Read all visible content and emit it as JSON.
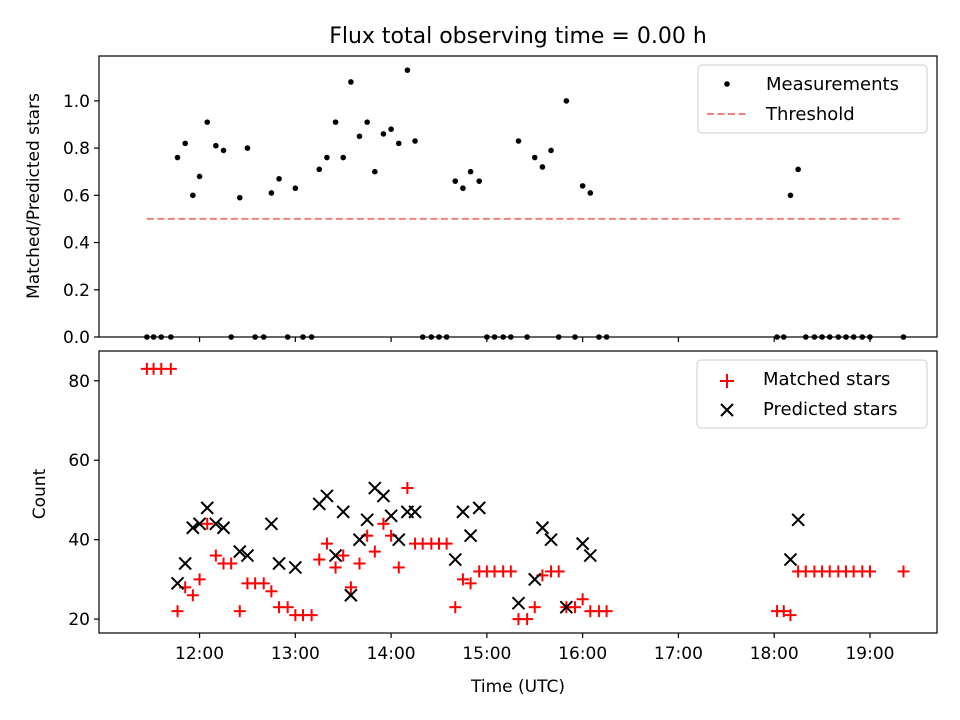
{
  "chart_data": [
    {
      "type": "scatter",
      "title": "Flux total observing time = 0.00 h",
      "xlabel": "",
      "ylabel": "Matched/Predicted stars",
      "xlim": [
        10.95,
        19.7
      ],
      "ylim": [
        0.0,
        1.19
      ],
      "yticks": [
        0.0,
        0.2,
        0.4,
        0.6,
        0.8,
        1.0
      ],
      "ytick_labels": [
        "0.0",
        "0.2",
        "0.4",
        "0.6",
        "0.8",
        "1.0"
      ],
      "legend_position": "top-right",
      "series": [
        {
          "name": "Measurements",
          "marker": "dot",
          "color": "#000000",
          "points": [
            [
              11.45,
              0.0
            ],
            [
              11.52,
              0.0
            ],
            [
              11.6,
              0.0
            ],
            [
              11.7,
              0.0
            ],
            [
              11.77,
              0.76
            ],
            [
              11.85,
              0.82
            ],
            [
              11.93,
              0.6
            ],
            [
              12.0,
              0.68
            ],
            [
              12.08,
              0.91
            ],
            [
              12.17,
              0.81
            ],
            [
              12.25,
              0.79
            ],
            [
              12.33,
              0.0
            ],
            [
              12.42,
              0.59
            ],
            [
              12.5,
              0.8
            ],
            [
              12.58,
              0.0
            ],
            [
              12.67,
              0.0
            ],
            [
              12.75,
              0.61
            ],
            [
              12.83,
              0.67
            ],
            [
              12.92,
              0.0
            ],
            [
              13.0,
              0.63
            ],
            [
              13.08,
              0.0
            ],
            [
              13.17,
              0.0
            ],
            [
              13.25,
              0.71
            ],
            [
              13.33,
              0.76
            ],
            [
              13.42,
              0.91
            ],
            [
              13.5,
              0.76
            ],
            [
              13.58,
              1.08
            ],
            [
              13.67,
              0.85
            ],
            [
              13.75,
              0.91
            ],
            [
              13.83,
              0.7
            ],
            [
              13.92,
              0.86
            ],
            [
              14.0,
              0.88
            ],
            [
              14.08,
              0.82
            ],
            [
              14.17,
              1.13
            ],
            [
              14.25,
              0.83
            ],
            [
              14.33,
              0.0
            ],
            [
              14.42,
              0.0
            ],
            [
              14.5,
              0.0
            ],
            [
              14.58,
              0.0
            ],
            [
              14.67,
              0.66
            ],
            [
              14.75,
              0.63
            ],
            [
              14.83,
              0.7
            ],
            [
              14.92,
              0.66
            ],
            [
              15.0,
              0.0
            ],
            [
              15.08,
              0.0
            ],
            [
              15.17,
              0.0
            ],
            [
              15.25,
              0.0
            ],
            [
              15.33,
              0.83
            ],
            [
              15.42,
              0.0
            ],
            [
              15.5,
              0.76
            ],
            [
              15.58,
              0.72
            ],
            [
              15.67,
              0.79
            ],
            [
              15.75,
              0.0
            ],
            [
              15.83,
              1.0
            ],
            [
              15.92,
              0.0
            ],
            [
              16.0,
              0.64
            ],
            [
              16.08,
              0.61
            ],
            [
              16.17,
              0.0
            ],
            [
              16.25,
              0.0
            ],
            [
              18.03,
              0.0
            ],
            [
              18.1,
              0.0
            ],
            [
              18.17,
              0.6
            ],
            [
              18.25,
              0.71
            ],
            [
              18.33,
              0.0
            ],
            [
              18.42,
              0.0
            ],
            [
              18.5,
              0.0
            ],
            [
              18.58,
              0.0
            ],
            [
              18.67,
              0.0
            ],
            [
              18.75,
              0.0
            ],
            [
              18.83,
              0.0
            ],
            [
              18.92,
              0.0
            ],
            [
              19.0,
              0.0
            ],
            [
              19.35,
              0.0
            ]
          ]
        },
        {
          "name": "Threshold",
          "marker": "dashed-line",
          "color": "#f08080",
          "points": [
            [
              11.45,
              0.5
            ],
            [
              19.33,
              0.5
            ]
          ]
        }
      ]
    },
    {
      "type": "scatter",
      "title": "",
      "xlabel": "Time (UTC)",
      "ylabel": "Count",
      "xlim": [
        10.95,
        19.7
      ],
      "ylim": [
        16.5,
        87.5
      ],
      "yticks": [
        20,
        40,
        60,
        80
      ],
      "ytick_labels": [
        "20",
        "40",
        "60",
        "80"
      ],
      "xticks": [
        12,
        13,
        14,
        15,
        16,
        17,
        18,
        19
      ],
      "xtick_labels": [
        "12:00",
        "13:00",
        "14:00",
        "15:00",
        "16:00",
        "17:00",
        "18:00",
        "19:00"
      ],
      "legend_position": "top-right",
      "series": [
        {
          "name": "Matched stars",
          "marker": "plus",
          "color": "#ff0000",
          "points": [
            [
              11.45,
              83
            ],
            [
              11.52,
              83
            ],
            [
              11.6,
              83
            ],
            [
              11.7,
              83
            ],
            [
              11.77,
              22
            ],
            [
              11.85,
              28
            ],
            [
              11.93,
              26
            ],
            [
              12.0,
              30
            ],
            [
              12.08,
              44
            ],
            [
              12.17,
              36
            ],
            [
              12.25,
              34
            ],
            [
              12.33,
              34
            ],
            [
              12.42,
              22
            ],
            [
              12.5,
              29
            ],
            [
              12.58,
              29
            ],
            [
              12.67,
              29
            ],
            [
              12.75,
              27
            ],
            [
              12.83,
              23
            ],
            [
              12.92,
              23
            ],
            [
              13.0,
              21
            ],
            [
              13.08,
              21
            ],
            [
              13.17,
              21
            ],
            [
              13.25,
              35
            ],
            [
              13.33,
              39
            ],
            [
              13.42,
              33
            ],
            [
              13.5,
              36
            ],
            [
              13.58,
              28
            ],
            [
              13.67,
              34
            ],
            [
              13.75,
              41
            ],
            [
              13.83,
              37
            ],
            [
              13.92,
              44
            ],
            [
              14.0,
              41
            ],
            [
              14.08,
              33
            ],
            [
              14.17,
              53
            ],
            [
              14.25,
              39
            ],
            [
              14.33,
              39
            ],
            [
              14.42,
              39
            ],
            [
              14.5,
              39
            ],
            [
              14.58,
              39
            ],
            [
              14.67,
              23
            ],
            [
              14.75,
              30
            ],
            [
              14.83,
              29
            ],
            [
              14.92,
              32
            ],
            [
              15.0,
              32
            ],
            [
              15.08,
              32
            ],
            [
              15.17,
              32
            ],
            [
              15.25,
              32
            ],
            [
              15.33,
              20
            ],
            [
              15.42,
              20
            ],
            [
              15.5,
              23
            ],
            [
              15.58,
              31
            ],
            [
              15.67,
              32
            ],
            [
              15.75,
              32
            ],
            [
              15.83,
              23
            ],
            [
              15.92,
              23
            ],
            [
              16.0,
              25
            ],
            [
              16.08,
              22
            ],
            [
              16.17,
              22
            ],
            [
              16.25,
              22
            ],
            [
              18.03,
              22
            ],
            [
              18.1,
              22
            ],
            [
              18.17,
              21
            ],
            [
              18.25,
              32
            ],
            [
              18.33,
              32
            ],
            [
              18.42,
              32
            ],
            [
              18.5,
              32
            ],
            [
              18.58,
              32
            ],
            [
              18.67,
              32
            ],
            [
              18.75,
              32
            ],
            [
              18.83,
              32
            ],
            [
              18.92,
              32
            ],
            [
              19.0,
              32
            ],
            [
              19.35,
              32
            ]
          ]
        },
        {
          "name": "Predicted stars",
          "marker": "x",
          "color": "#000000",
          "points": [
            [
              11.77,
              29
            ],
            [
              11.85,
              34
            ],
            [
              11.93,
              43
            ],
            [
              12.0,
              44
            ],
            [
              12.08,
              48
            ],
            [
              12.17,
              44
            ],
            [
              12.25,
              43
            ],
            [
              12.42,
              37
            ],
            [
              12.5,
              36
            ],
            [
              12.75,
              44
            ],
            [
              12.83,
              34
            ],
            [
              13.0,
              33
            ],
            [
              13.25,
              49
            ],
            [
              13.33,
              51
            ],
            [
              13.42,
              36
            ],
            [
              13.5,
              47
            ],
            [
              13.58,
              26
            ],
            [
              13.67,
              40
            ],
            [
              13.75,
              45
            ],
            [
              13.83,
              53
            ],
            [
              13.92,
              51
            ],
            [
              14.0,
              46
            ],
            [
              14.08,
              40
            ],
            [
              14.17,
              47
            ],
            [
              14.25,
              47
            ],
            [
              14.67,
              35
            ],
            [
              14.75,
              47
            ],
            [
              14.83,
              41
            ],
            [
              14.92,
              48
            ],
            [
              15.33,
              24
            ],
            [
              15.5,
              30
            ],
            [
              15.58,
              43
            ],
            [
              15.67,
              40
            ],
            [
              15.83,
              23
            ],
            [
              16.0,
              39
            ],
            [
              16.08,
              36
            ],
            [
              18.17,
              35
            ],
            [
              18.25,
              45
            ]
          ]
        }
      ]
    }
  ]
}
